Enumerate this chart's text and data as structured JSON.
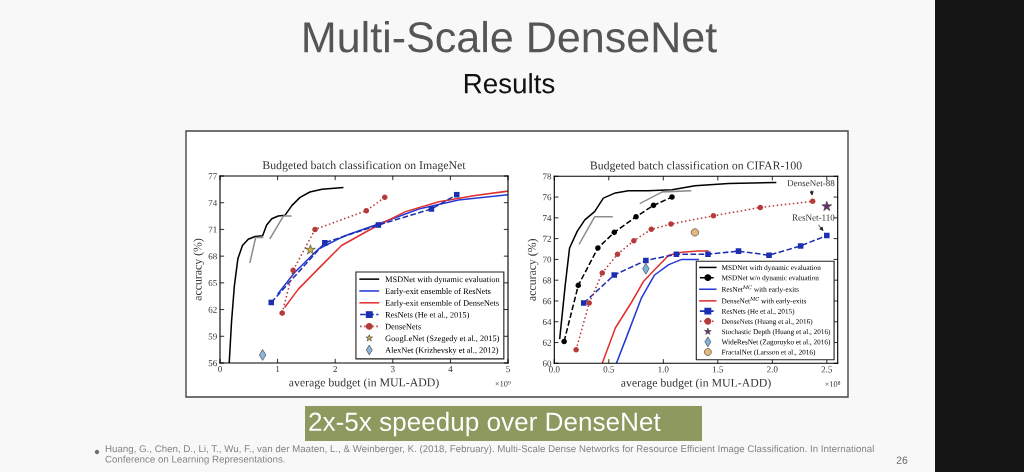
{
  "chart_data": [
    {
      "type": "other",
      "title": "Multi-Scale DenseNet",
      "subtitle": "Results",
      "annotations": [
        "2x-5x speedup over DenseNet",
        "Huang, G., Chen, D., Li, T., Wu, F., van der Maaten, L., & Weinberger, K. (2018, February). Multi-Scale Dense Networks for Resource Efficient Image Classification. In International Conference on Learning Representations.",
        "26"
      ]
    },
    {
      "type": "line",
      "title": "Budgeted batch classification on ImageNet",
      "xlabel": "average budget (in MUL-ADD)",
      "ylabel": "accuracy (%)",
      "xlim": [
        0,
        5
      ],
      "ylim": [
        56,
        77
      ],
      "xticks": [
        0,
        1,
        2,
        3,
        4,
        5
      ],
      "yticks": [
        56,
        59,
        62,
        65,
        68,
        71,
        74,
        77
      ],
      "legend": "bottom right",
      "annotations": [
        "×10⁹"
      ],
      "series": [
        {
          "name": "MSDNet with dynamic evaluation",
          "color": "#000000",
          "line_style": "solid",
          "x": [
            0.16,
            0.2,
            0.25,
            0.31,
            0.39,
            0.49,
            0.61,
            0.74,
            0.81,
            0.9,
            1.01,
            1.13,
            1.25,
            1.39,
            1.56,
            1.77,
            2.13
          ],
          "values": [
            56.0,
            60.6,
            64.7,
            67.7,
            69.2,
            69.9,
            70.2,
            70.3,
            71.5,
            72.2,
            72.5,
            72.6,
            73.7,
            74.6,
            75.2,
            75.5,
            75.7
          ]
        },
        {
          "color": "#8c8c8c",
          "line_style": "solid",
          "x": [
            0.52,
            0.62,
            0.74
          ],
          "values": [
            67.3,
            70.1,
            70.1
          ]
        },
        {
          "color": "#8c8c8c",
          "line_style": "solid",
          "x": [
            0.87,
            1.1,
            1.23
          ],
          "values": [
            70.0,
            72.5,
            72.5
          ]
        },
        {
          "name": "Early-exit ensemble of ResNets",
          "color": "#2639d6",
          "line_style": "solid",
          "x": [
            1.01,
            1.3,
            1.71,
            2.17,
            2.75,
            3.45,
            4.14,
            5.0
          ],
          "values": [
            63.8,
            66.2,
            68.8,
            70.3,
            71.6,
            73.3,
            74.3,
            74.9
          ]
        },
        {
          "name": "Early-exit ensemble of DenseNets",
          "color": "#e0312f",
          "line_style": "solid",
          "x": [
            1.13,
            1.36,
            1.71,
            2.11,
            2.64,
            3.22,
            3.8,
            4.43,
            5.0
          ],
          "values": [
            62.3,
            64.3,
            66.6,
            69.2,
            71.1,
            73.0,
            74.1,
            74.8,
            75.3
          ]
        },
        {
          "name": "ResNets (He et al., 2015)",
          "color": "#1c2fb0",
          "line_style": "dashed",
          "marker": "square",
          "x": [
            0.89,
            1.82,
            2.75,
            3.67,
            4.11
          ],
          "values": [
            62.8,
            69.5,
            71.5,
            73.3,
            74.9
          ]
        },
        {
          "name": "DenseNets",
          "color": "#b53a3a",
          "line_style": "dotted",
          "marker": "circle",
          "x": [
            1.08,
            1.27,
            1.65,
            2.54,
            2.86
          ],
          "values": [
            61.6,
            66.4,
            71.0,
            73.1,
            74.6
          ]
        },
        {
          "name": "GoogLeNet (Szegedy et al., 2015)",
          "type": "scatter",
          "color": "#c9b343",
          "marker": "star",
          "x": [
            1.57
          ],
          "values": [
            68.7
          ]
        },
        {
          "name": "AlexNet (Krizhevsky et al., 2012)",
          "type": "scatter",
          "color": "#8db6de",
          "marker": "diamond",
          "x": [
            0.74
          ],
          "values": [
            56.9
          ]
        }
      ]
    },
    {
      "type": "line",
      "title": "Budgeted batch classification on CIFAR-100",
      "xlabel": "average budget (in MUL-ADD)",
      "ylabel": "accuracy (%)",
      "xlim": [
        0,
        2.6
      ],
      "ylim": [
        60,
        78
      ],
      "xticks": [
        {
          "value": 0,
          "label": "0.0"
        },
        0.5,
        {
          "value": 1,
          "label": "1.0"
        },
        1.5,
        {
          "value": 2,
          "label": "2.0"
        },
        2.5
      ],
      "yticks": [
        60,
        62,
        64,
        66,
        68,
        70,
        72,
        74,
        76,
        78
      ],
      "legend": "bottom right",
      "annotations": [
        "×10⁸",
        {
          "text": "DenseNet-88",
          "x": 2.37,
          "y": 75.6
        },
        {
          "text": "ResNet-110",
          "x": 2.5,
          "y": 72.3
        }
      ],
      "series": [
        {
          "name": "MSDNet with dynamic evaluation",
          "color": "#000000",
          "line_style": "solid",
          "x": [
            0.05,
            0.1,
            0.14,
            0.21,
            0.28,
            0.37,
            0.45,
            0.56,
            0.68,
            0.86,
            1.08,
            1.29,
            1.6,
            2.03
          ],
          "values": [
            62.4,
            67.5,
            71.1,
            72.7,
            73.8,
            74.6,
            75.9,
            76.4,
            76.6,
            76.6,
            76.7,
            77.1,
            77.3,
            77.4
          ]
        },
        {
          "color": "#8c8c8c",
          "line_style": "solid",
          "x": [
            0.23,
            0.37,
            0.53
          ],
          "values": [
            71.5,
            74.1,
            74.1
          ]
        },
        {
          "color": "#8c8c8c",
          "line_style": "solid",
          "x": [
            0.79,
            0.99,
            1.25
          ],
          "values": [
            75.4,
            76.5,
            76.6
          ]
        },
        {
          "name": "MSDNet w/o dynamic evaluation",
          "color": "#000000",
          "line_style": "dashed",
          "marker": "circle",
          "x": [
            0.09,
            0.22,
            0.4,
            0.55,
            0.75,
            0.91,
            1.08
          ],
          "values": [
            62.1,
            67.5,
            71.1,
            72.6,
            74.1,
            75.2,
            76.0
          ]
        },
        {
          "name": "ResNet$^{MC}$ with early-exits",
          "color": "#2639d6",
          "line_style": "solid",
          "x": [
            0.57,
            0.68,
            0.8,
            0.92,
            1.05,
            1.17,
            1.32
          ],
          "values": [
            60.0,
            63.0,
            66.3,
            68.5,
            69.5,
            70.0,
            70.0
          ]
        },
        {
          "name": "DenseNet$^{MC}$ with early-exits",
          "color": "#e0312f",
          "line_style": "solid",
          "x": [
            0.44,
            0.56,
            0.71,
            0.82,
            0.92,
            1.05,
            1.17,
            1.32,
            1.41
          ],
          "values": [
            60.0,
            63.4,
            65.9,
            67.9,
            69.0,
            70.4,
            70.7,
            70.8,
            70.8
          ]
        },
        {
          "name": "ResNets (He et al., 2015)",
          "color": "#1c2fb0",
          "line_style": "dashed",
          "marker": "square",
          "x": [
            0.27,
            0.55,
            0.84,
            1.12,
            1.41,
            1.69,
            1.97,
            2.26,
            2.5
          ],
          "values": [
            65.8,
            68.5,
            69.9,
            70.5,
            70.5,
            70.8,
            70.4,
            71.3,
            72.3
          ]
        },
        {
          "name": "DenseNets (Huang et al., 2016)",
          "color": "#b53a3a",
          "line_style": "dotted",
          "marker": "circle",
          "x": [
            0.2,
            0.32,
            0.44,
            0.58,
            0.73,
            0.89,
            1.07,
            1.46,
            1.89,
            2.37
          ],
          "values": [
            61.3,
            65.8,
            68.7,
            70.5,
            71.8,
            72.9,
            73.4,
            74.2,
            75.0,
            75.6
          ]
        },
        {
          "name": "Stochastic Depth (Huang et al., 2016)",
          "type": "scatter",
          "color": "#6b2d6b",
          "marker": "star",
          "x": [
            2.5
          ],
          "values": [
            75.1
          ]
        },
        {
          "name": "WideResNet (Zagoruyko et al., 2016)",
          "type": "scatter",
          "color": "#7fb3e0",
          "marker": "diamond",
          "x": [
            0.84
          ],
          "values": [
            69.1
          ]
        },
        {
          "name": "FractalNet (Larsson et al., 2016)",
          "type": "scatter",
          "color": "#e8b87a",
          "marker": "circle",
          "x": [
            1.29
          ],
          "values": [
            72.6
          ]
        }
      ]
    }
  ]
}
